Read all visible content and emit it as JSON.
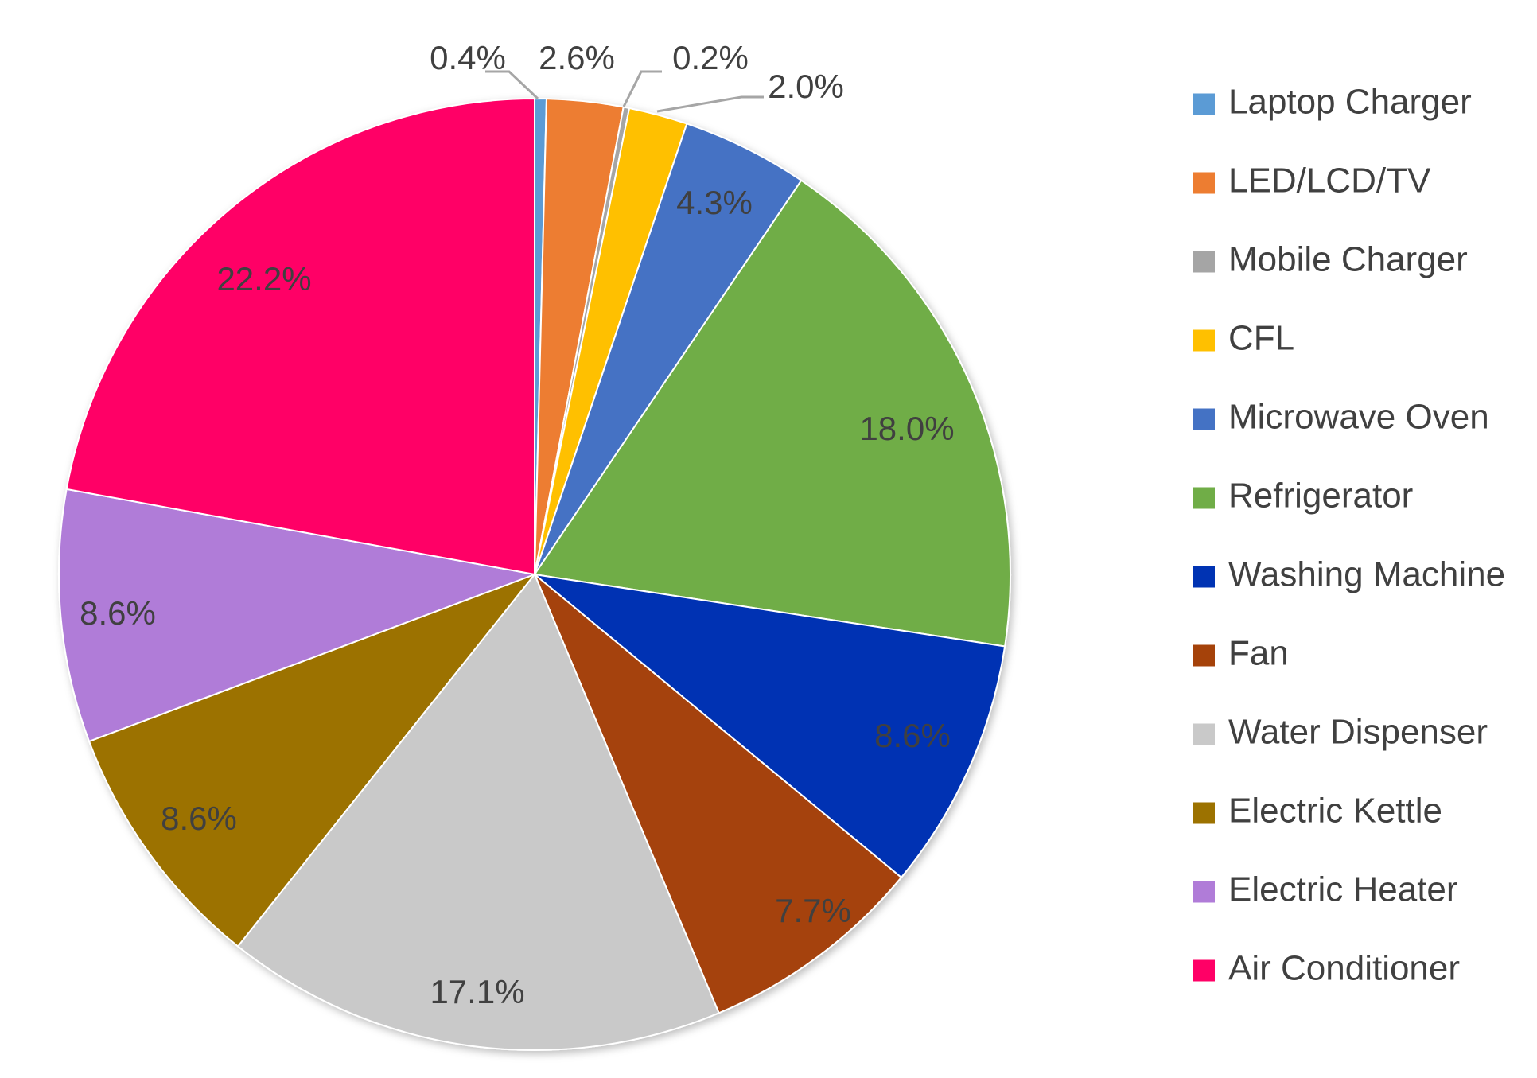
{
  "chart_data": {
    "type": "pie",
    "title": "",
    "legend_position": "right",
    "start_angle": "12 o'clock, clockwise",
    "slices": [
      {
        "name": "Laptop Charger",
        "value": 0.4,
        "label": "0.4%",
        "color": "#5B9BD5"
      },
      {
        "name": "LED/LCD/TV",
        "value": 2.6,
        "label": "2.6%",
        "color": "#ED7D31"
      },
      {
        "name": "Mobile Charger",
        "value": 0.2,
        "label": "0.2%",
        "color": "#A5A5A5"
      },
      {
        "name": "CFL",
        "value": 2.0,
        "label": "2.0%",
        "color": "#FFC000"
      },
      {
        "name": "Microwave Oven",
        "value": 4.3,
        "label": "4.3%",
        "color": "#4472C4"
      },
      {
        "name": "Refrigerator",
        "value": 18.0,
        "label": "18.0%",
        "color": "#70AD47"
      },
      {
        "name": "Washing Machine",
        "value": 8.6,
        "label": "8.6%",
        "color": "#0033B3"
      },
      {
        "name": "Fan",
        "value": 7.7,
        "label": "7.7%",
        "color": "#A5420A"
      },
      {
        "name": "Water Dispenser",
        "value": 17.1,
        "label": "17.1%",
        "color": "#C9C9C9"
      },
      {
        "name": "Electric Kettle",
        "value": 8.6,
        "label": "8.6%",
        "color": "#9C7200"
      },
      {
        "name": "Electric Heater",
        "value": 8.6,
        "label": "8.6%",
        "color": "#B07CD8"
      },
      {
        "name": "Air Conditioner",
        "value": 22.2,
        "label": "22.2%",
        "color": "#FF0066"
      }
    ]
  }
}
